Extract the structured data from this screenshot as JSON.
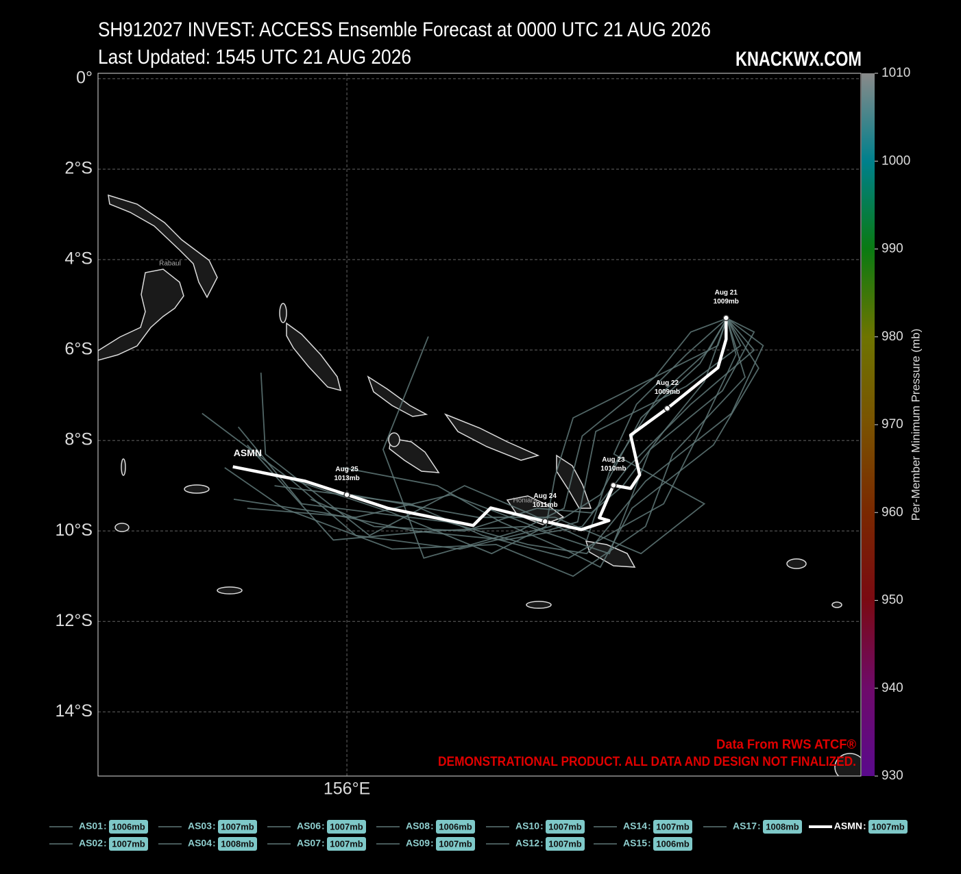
{
  "chart_data": {
    "type": "track",
    "title": "SH912027 INVEST: ACCESS Ensemble Forecast at 0000 UTC 21 AUG 2026",
    "subtitle": "Last Updated: 1545 UTC 21 AUG 2026",
    "brand": "KNACKWX.COM",
    "source_note": "Data From RWS ATCF®",
    "disclaimer": "DEMONSTRATIONAL PRODUCT. ALL DATA AND DESIGN NOT FINALIZED.",
    "place_labels": [
      "Rabaul",
      "Honiara"
    ],
    "xlim": [
      150.5,
      167.36
    ],
    "ylim": [
      -15.42,
      0.12
    ],
    "xticks": [
      {
        "value": 156,
        "label": "156°E"
      }
    ],
    "yticks": [
      {
        "value": 0,
        "label": "0°"
      },
      {
        "value": -2,
        "label": "2°S"
      },
      {
        "value": -4,
        "label": "4°S"
      },
      {
        "value": -6,
        "label": "6°S"
      },
      {
        "value": -8,
        "label": "8°S"
      },
      {
        "value": -10,
        "label": "10°S"
      },
      {
        "value": -12,
        "label": "12°S"
      },
      {
        "value": -14,
        "label": "14°S"
      }
    ],
    "grid": true,
    "colorbar": {
      "label": "Per-Member Minimum Pressure (mb)",
      "lim": [
        930,
        1010
      ],
      "ticks": [
        930,
        940,
        950,
        960,
        970,
        980,
        990,
        1000,
        1010
      ],
      "colors": [
        "#5a0a8c",
        "#6e0a6a",
        "#7a0a12",
        "#7a2800",
        "#7a5200",
        "#6e7400",
        "#0a7a12",
        "#00808c",
        "#8a8a8a"
      ]
    },
    "series": [
      {
        "name": "AS01",
        "color": "#5f7878",
        "pressure_label": "1006mb",
        "lon": [
          164.4,
          165.0,
          163.6,
          162.2,
          161.2,
          159.5,
          157.5,
          155.5,
          153.5
        ],
        "lat": [
          -5.3,
          -6.0,
          -7.2,
          -8.6,
          -9.9,
          -10.2,
          -10.0,
          -9.6,
          -9.3
        ]
      },
      {
        "name": "AS02",
        "color": "#5f7878",
        "pressure_label": "1007mb",
        "lon": [
          164.4,
          163.8,
          162.5,
          161.6,
          160.5,
          158.5,
          156.2,
          154.8,
          152.8
        ],
        "lat": [
          -5.3,
          -6.3,
          -7.5,
          -9.2,
          -9.9,
          -10.4,
          -10.1,
          -8.9,
          -7.4
        ]
      },
      {
        "name": "AS03",
        "color": "#5f7878",
        "pressure_label": "1007mb",
        "lon": [
          164.4,
          165.2,
          164.5,
          162.6,
          161.3,
          160.0,
          158.2,
          155.0,
          153.6
        ],
        "lat": [
          -5.3,
          -5.9,
          -7.4,
          -8.9,
          -10.5,
          -10.3,
          -9.8,
          -9.4,
          -7.7
        ]
      },
      {
        "name": "AS04",
        "color": "#5f7878",
        "pressure_label": "1008mb",
        "lon": [
          164.4,
          163.6,
          162.8,
          161.2,
          160.8,
          159.8,
          157.7,
          156.8,
          157.8
        ],
        "lat": [
          -5.3,
          -5.6,
          -6.6,
          -7.9,
          -9.5,
          -10.0,
          -10.6,
          -8.2,
          -5.7
        ]
      },
      {
        "name": "AS06",
        "color": "#5f7878",
        "pressure_label": "1007mb",
        "lon": [
          164.4,
          164.8,
          163.2,
          162.6,
          161.0,
          159.3,
          157.0,
          154.6,
          153.3
        ],
        "lat": [
          -5.3,
          -6.6,
          -8.3,
          -9.9,
          -11.0,
          -10.3,
          -10.4,
          -9.5,
          -8.6
        ]
      },
      {
        "name": "AS07",
        "color": "#5f7878",
        "pressure_label": "1007mb",
        "lon": [
          164.4,
          164.0,
          162.9,
          161.8,
          161.3,
          160.0,
          158.6,
          156.5,
          154.2,
          154.1
        ],
        "lat": [
          -5.3,
          -6.0,
          -7.0,
          -8.7,
          -10.2,
          -9.6,
          -9.0,
          -10.1,
          -8.3,
          -6.5
        ]
      },
      {
        "name": "AS08",
        "color": "#5f7878",
        "pressure_label": "1006mb",
        "lon": [
          164.4,
          164.7,
          163.5,
          161.5,
          161.1,
          160.4,
          158.3,
          156.2,
          153.8
        ],
        "lat": [
          -5.3,
          -5.9,
          -6.8,
          -7.8,
          -9.8,
          -10.0,
          -9.2,
          -9.7,
          -9.5
        ]
      },
      {
        "name": "AS09",
        "color": "#5f7878",
        "pressure_label": "1007mb",
        "lon": [
          164.4,
          165.1,
          164.1,
          162.3,
          161.6,
          160.8,
          159.4,
          158.0,
          155.9
        ],
        "lat": [
          -5.3,
          -6.4,
          -8.1,
          -9.5,
          -10.8,
          -10.4,
          -9.8,
          -9.0,
          -8.6
        ]
      },
      {
        "name": "AS10",
        "color": "#5f7878",
        "pressure_label": "1007mb",
        "lon": [
          164.4,
          163.9,
          163.0,
          162.1,
          161.4,
          160.2,
          158.6,
          156.6,
          155.2
        ],
        "lat": [
          -5.3,
          -6.7,
          -7.8,
          -9.0,
          -9.6,
          -9.5,
          -10.0,
          -9.9,
          -9.3
        ]
      },
      {
        "name": "AS12",
        "color": "#5f7878",
        "pressure_label": "1007mb",
        "lon": [
          164.4,
          164.6,
          163.7,
          163.0,
          162.1,
          160.9,
          159.0,
          157.4,
          154.4
        ],
        "lat": [
          -5.3,
          -6.1,
          -8.0,
          -9.4,
          -9.9,
          -10.6,
          -10.1,
          -9.4,
          -9.0
        ]
      },
      {
        "name": "AS14",
        "color": "#5f7878",
        "pressure_label": "1007mb",
        "lon": [
          164.4,
          163.5,
          162.4,
          161.9,
          163.9,
          162.5,
          160.6,
          158.9,
          156.1
        ],
        "lat": [
          -5.3,
          -6.1,
          -7.2,
          -8.3,
          -9.4,
          -10.5,
          -9.7,
          -9.7,
          -9.2
        ]
      },
      {
        "name": "AS15",
        "color": "#5f7878",
        "pressure_label": "1006mb",
        "lon": [
          164.4,
          165.0,
          164.3,
          162.7,
          161.8,
          160.0,
          157.9,
          155.7,
          153.8
        ],
        "lat": [
          -5.3,
          -5.6,
          -6.9,
          -8.2,
          -10.5,
          -9.9,
          -10.0,
          -10.2,
          -8.1
        ]
      },
      {
        "name": "AS17",
        "color": "#5f7878",
        "pressure_label": "1008mb",
        "lon": [
          164.4,
          164.2,
          163.0,
          161.0,
          160.6,
          160.4,
          159.2,
          157.0,
          154.6
        ],
        "lat": [
          -5.3,
          -5.9,
          -6.5,
          -7.5,
          -8.8,
          -9.9,
          -10.5,
          -9.6,
          -8.8
        ]
      }
    ],
    "mean": {
      "name": "ASMN",
      "color": "#ffffff",
      "pressure_label": "1007mb",
      "lon": [
        164.38,
        164.38,
        164.2,
        163.08,
        162.27,
        162.47,
        162.27,
        161.89,
        161.58,
        161.79,
        161.18,
        160.38,
        159.18,
        158.79,
        156.91,
        156.0,
        155.08,
        153.48
      ],
      "lat": [
        -5.29,
        -5.76,
        -6.39,
        -7.29,
        -7.88,
        -8.76,
        -9.06,
        -8.99,
        -9.71,
        -9.77,
        -9.97,
        -9.79,
        -9.49,
        -9.88,
        -9.5,
        -9.2,
        -8.9,
        -8.58
      ],
      "day_labels": [
        "Aug 21",
        null,
        null,
        "Aug 22",
        null,
        null,
        null,
        "Aug 23",
        null,
        null,
        null,
        "Aug 24",
        null,
        null,
        null,
        "Aug 25",
        null,
        null
      ],
      "pressure_labels": [
        "1009mb",
        null,
        null,
        "1009mb",
        null,
        null,
        null,
        "1010mb",
        null,
        null,
        null,
        "1011mb",
        null,
        null,
        null,
        "1013mb",
        null,
        null
      ]
    }
  }
}
